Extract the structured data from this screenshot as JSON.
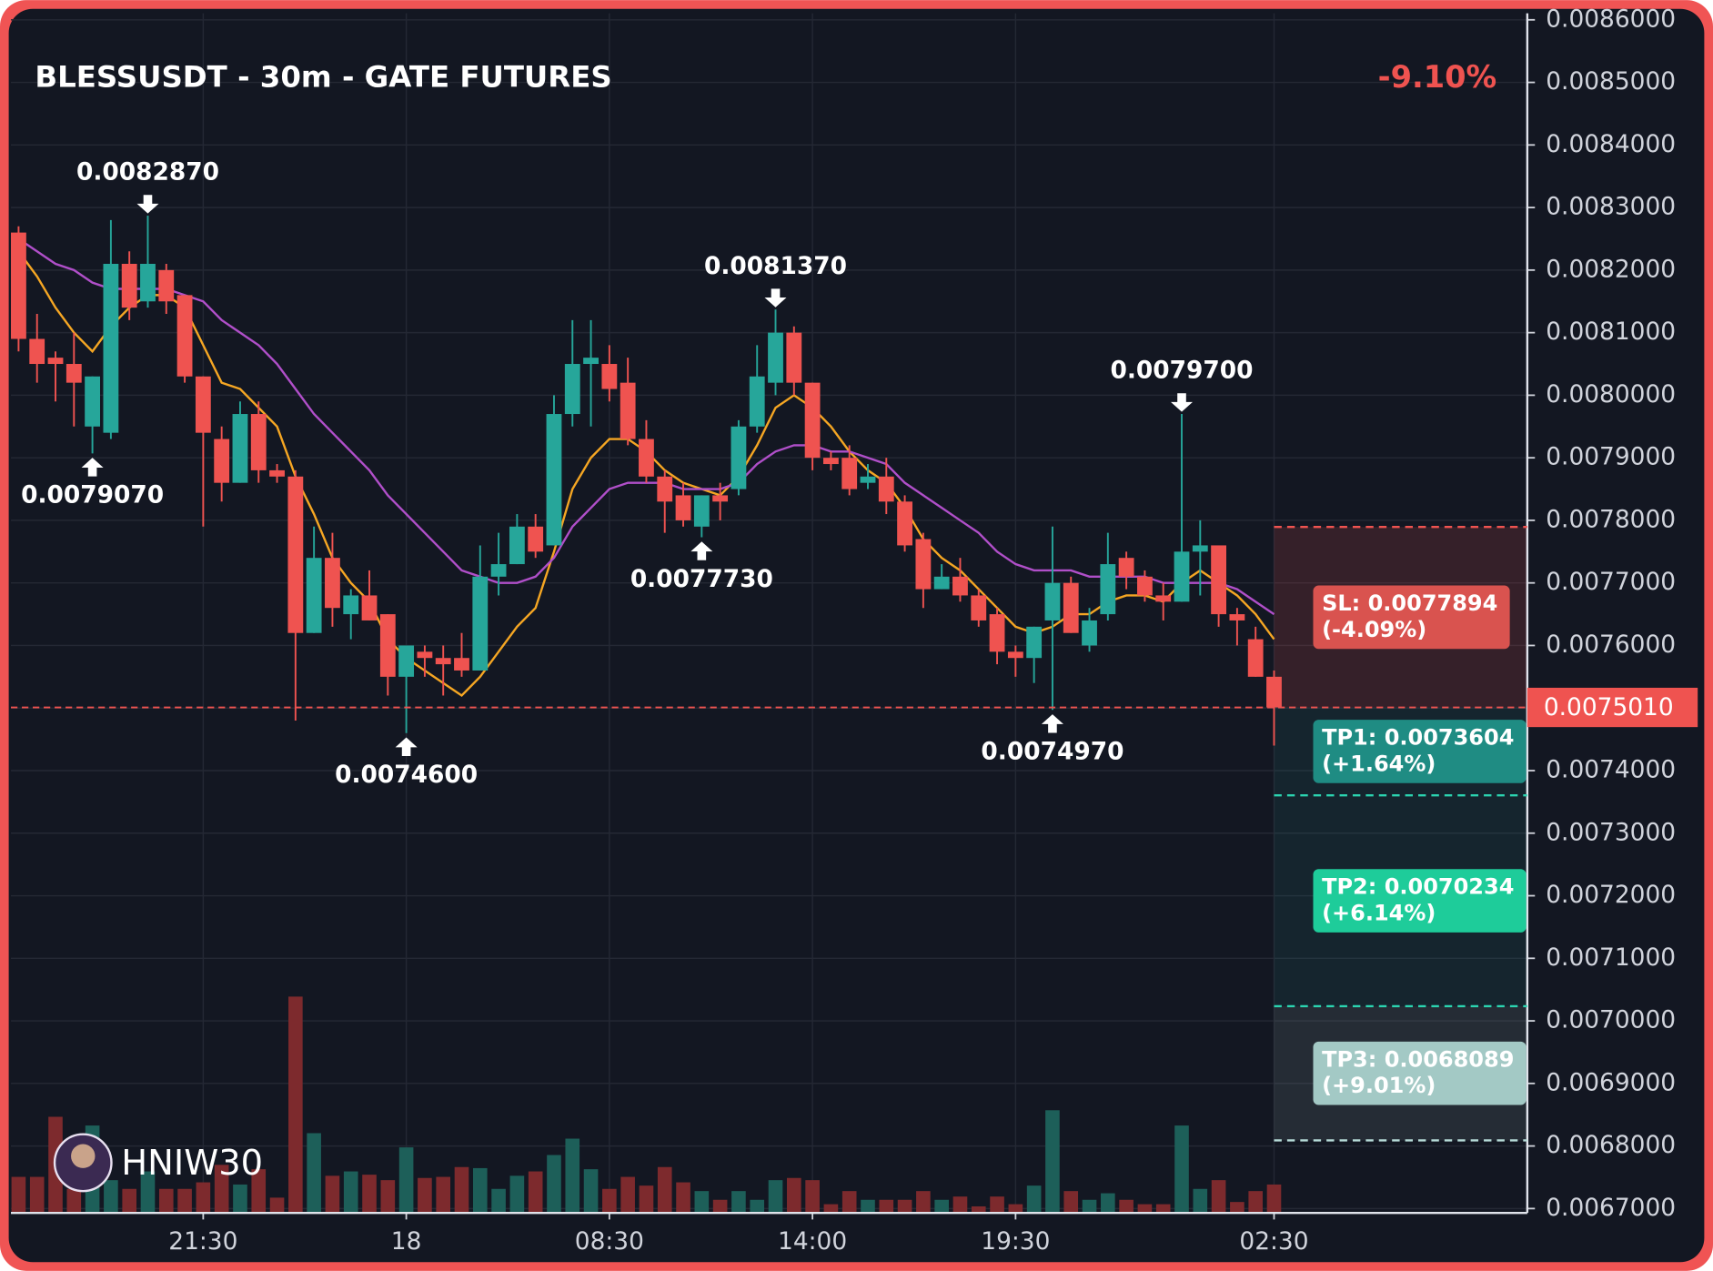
{
  "chart_data": {
    "type": "candlestick",
    "title": "BLESSUSDT - 30m - GATE FUTURES",
    "change": "-9.10%",
    "watermark": "HNIW30",
    "up_color": "#26a69a",
    "down_color": "#ef5350",
    "ylim": [
      0.0067,
      0.0086
    ],
    "yticks": [
      {
        "value": 0.0067,
        "label": "0.0067000"
      },
      {
        "value": 0.0068,
        "label": "0.0068000"
      },
      {
        "value": 0.0069,
        "label": "0.0069000"
      },
      {
        "value": 0.007,
        "label": "0.0070000"
      },
      {
        "value": 0.0071,
        "label": "0.0071000"
      },
      {
        "value": 0.0072,
        "label": "0.0072000"
      },
      {
        "value": 0.0073,
        "label": "0.0073000"
      },
      {
        "value": 0.0074,
        "label": "0.0074000"
      },
      {
        "value": 0.0075,
        "label": "0.0075000"
      },
      {
        "value": 0.0076,
        "label": "0.0076000"
      },
      {
        "value": 0.0077,
        "label": "0.0077000"
      },
      {
        "value": 0.0078,
        "label": "0.0078000"
      },
      {
        "value": 0.0079,
        "label": "0.0079000"
      },
      {
        "value": 0.008,
        "label": "0.0080000"
      },
      {
        "value": 0.0081,
        "label": "0.0081000"
      },
      {
        "value": 0.0082,
        "label": "0.0082000"
      },
      {
        "value": 0.0083,
        "label": "0.0083000"
      },
      {
        "value": 0.0084,
        "label": "0.0084000"
      },
      {
        "value": 0.0085,
        "label": "0.0085000"
      },
      {
        "value": 0.0086,
        "label": "0.0086000"
      }
    ],
    "xticks": [
      {
        "value": 10,
        "label": "21:30"
      },
      {
        "value": 21,
        "label": "18"
      },
      {
        "value": 32,
        "label": "08:30"
      },
      {
        "value": 43,
        "label": "14:00"
      },
      {
        "value": 54,
        "label": "19:30"
      },
      {
        "value": 68,
        "label": "02:30"
      }
    ],
    "grid": true,
    "open": [
      0.00826,
      0.00809,
      0.00806,
      0.00805,
      0.00795,
      0.00794,
      0.00821,
      0.00815,
      0.0082,
      0.00816,
      0.00803,
      0.00793,
      0.00786,
      0.00797,
      0.00788,
      0.00787,
      0.00762,
      0.00774,
      0.00765,
      0.00768,
      0.00765,
      0.00755,
      0.00759,
      0.00758,
      0.00758,
      0.00756,
      0.00771,
      0.00773,
      0.00779,
      0.00776,
      0.00797,
      0.00805,
      0.00805,
      0.00802,
      0.00793,
      0.00787,
      0.00784,
      0.00779,
      0.00784,
      0.00785,
      0.00795,
      0.00802,
      0.0081,
      0.00802,
      0.0079,
      0.0079,
      0.00786,
      0.00787,
      0.00783,
      0.00777,
      0.00769,
      0.00771,
      0.00768,
      0.00765,
      0.00759,
      0.00758,
      0.00764,
      0.0077,
      0.0076,
      0.00765,
      0.00774,
      0.00771,
      0.00768,
      0.00767,
      0.00775,
      0.00776,
      0.00765,
      0.00761,
      0.00755
    ],
    "high": [
      0.00827,
      0.00813,
      0.00807,
      0.0081,
      0.00803,
      0.00828,
      0.00823,
      0.008287,
      0.00821,
      0.00816,
      0.00803,
      0.00795,
      0.00799,
      0.00799,
      0.00789,
      0.00788,
      0.00779,
      0.00778,
      0.00769,
      0.00772,
      0.00765,
      0.0076,
      0.0076,
      0.0076,
      0.00762,
      0.00776,
      0.00778,
      0.00781,
      0.00781,
      0.008,
      0.00812,
      0.00812,
      0.00808,
      0.00806,
      0.00796,
      0.00788,
      0.00786,
      0.00784,
      0.00786,
      0.00796,
      0.00808,
      0.008137,
      0.00811,
      0.00802,
      0.00791,
      0.00792,
      0.00789,
      0.0079,
      0.00784,
      0.00778,
      0.00773,
      0.00774,
      0.00769,
      0.00766,
      0.0076,
      0.00763,
      0.00779,
      0.00771,
      0.00766,
      0.00778,
      0.00775,
      0.00772,
      0.0077,
      0.00797,
      0.0078,
      0.00776,
      0.00766,
      0.00763,
      0.00756
    ],
    "low": [
      0.00807,
      0.00802,
      0.00799,
      0.00795,
      0.007907,
      0.00793,
      0.00812,
      0.00814,
      0.00813,
      0.00802,
      0.00779,
      0.00783,
      0.00786,
      0.00786,
      0.00786,
      0.00748,
      0.00762,
      0.00763,
      0.00761,
      0.00764,
      0.00752,
      0.00746,
      0.00755,
      0.00752,
      0.00755,
      0.00756,
      0.00768,
      0.00773,
      0.00774,
      0.00776,
      0.00795,
      0.00795,
      0.00799,
      0.00792,
      0.00786,
      0.00778,
      0.00779,
      0.007773,
      0.0078,
      0.00784,
      0.00794,
      0.008,
      0.008,
      0.00788,
      0.00788,
      0.00784,
      0.00785,
      0.00781,
      0.00775,
      0.00766,
      0.00769,
      0.00767,
      0.00763,
      0.00757,
      0.00755,
      0.00754,
      0.007497,
      0.00762,
      0.00759,
      0.00764,
      0.00769,
      0.00767,
      0.00764,
      0.00767,
      0.00768,
      0.00763,
      0.0076,
      0.00755,
      0.00744
    ],
    "close": [
      0.00809,
      0.00805,
      0.00805,
      0.00802,
      0.00803,
      0.00821,
      0.00814,
      0.00821,
      0.00815,
      0.00803,
      0.00794,
      0.00786,
      0.00797,
      0.00788,
      0.00787,
      0.00762,
      0.00774,
      0.00766,
      0.00768,
      0.00764,
      0.00755,
      0.0076,
      0.00758,
      0.00757,
      0.00756,
      0.00771,
      0.00773,
      0.00779,
      0.00775,
      0.00797,
      0.00805,
      0.00806,
      0.00801,
      0.00793,
      0.00787,
      0.00783,
      0.0078,
      0.00784,
      0.00783,
      0.00795,
      0.00803,
      0.0081,
      0.00802,
      0.0079,
      0.00789,
      0.00785,
      0.00787,
      0.00783,
      0.00776,
      0.00769,
      0.00771,
      0.00768,
      0.00764,
      0.00759,
      0.00758,
      0.00763,
      0.0077,
      0.00762,
      0.00764,
      0.00773,
      0.00771,
      0.00768,
      0.00767,
      0.00775,
      0.00776,
      0.00765,
      0.00764,
      0.00755,
      0.007501
    ],
    "volume": [
      33,
      33,
      88,
      22,
      80,
      30,
      22,
      38,
      22,
      22,
      28,
      44,
      26,
      40,
      14,
      198,
      73,
      34,
      38,
      35,
      30,
      60,
      32,
      33,
      42,
      41,
      22,
      34,
      38,
      53,
      68,
      40,
      22,
      33,
      25,
      42,
      28,
      20,
      12,
      20,
      12,
      30,
      32,
      30,
      8,
      20,
      12,
      12,
      12,
      20,
      12,
      15,
      6,
      15,
      8,
      25,
      94,
      20,
      12,
      18,
      12,
      8,
      8,
      80,
      22,
      30,
      10,
      20,
      26
    ],
    "ma": [
      {
        "color": "#f5a623",
        "values": [
          0.00823,
          0.00819,
          0.00814,
          0.0081,
          0.00807,
          0.00811,
          0.00814,
          0.00816,
          0.00816,
          0.00814,
          0.00808,
          0.00802,
          0.00801,
          0.00798,
          0.00795,
          0.00787,
          0.00781,
          0.00774,
          0.0077,
          0.00767,
          0.00761,
          0.00758,
          0.00756,
          0.00754,
          0.00752,
          0.00755,
          0.00759,
          0.00763,
          0.00766,
          0.00775,
          0.00785,
          0.0079,
          0.00793,
          0.00793,
          0.00791,
          0.00788,
          0.00786,
          0.00785,
          0.00784,
          0.00787,
          0.00792,
          0.00798,
          0.008,
          0.00798,
          0.00795,
          0.00791,
          0.00788,
          0.00786,
          0.00782,
          0.00777,
          0.00774,
          0.00772,
          0.00769,
          0.00766,
          0.00763,
          0.00762,
          0.00763,
          0.00765,
          0.00765,
          0.00767,
          0.00768,
          0.00768,
          0.00767,
          0.0077,
          0.00772,
          0.0077,
          0.00768,
          0.00765,
          0.00761
        ]
      },
      {
        "color": "#b04fc9",
        "values": [
          0.00825,
          0.00823,
          0.00821,
          0.0082,
          0.00818,
          0.00817,
          0.00817,
          0.00817,
          0.00817,
          0.00816,
          0.00815,
          0.00812,
          0.0081,
          0.00808,
          0.00805,
          0.00801,
          0.00797,
          0.00794,
          0.00791,
          0.00788,
          0.00784,
          0.00781,
          0.00778,
          0.00775,
          0.00772,
          0.00771,
          0.0077,
          0.0077,
          0.00771,
          0.00774,
          0.00779,
          0.00782,
          0.00785,
          0.00786,
          0.00786,
          0.00786,
          0.00785,
          0.00785,
          0.00785,
          0.00786,
          0.00789,
          0.00791,
          0.00792,
          0.00792,
          0.00791,
          0.00791,
          0.0079,
          0.00789,
          0.00786,
          0.00784,
          0.00782,
          0.0078,
          0.00778,
          0.00775,
          0.00773,
          0.00772,
          0.00772,
          0.00772,
          0.00771,
          0.00771,
          0.00771,
          0.00771,
          0.0077,
          0.0077,
          0.0077,
          0.0077,
          0.00769,
          0.00767,
          0.00765
        ]
      }
    ],
    "annotations": [
      {
        "index": 7,
        "side": "high",
        "value": 0.008287,
        "label": "0.0082870"
      },
      {
        "index": 4,
        "side": "low",
        "value": 0.007907,
        "label": "0.0079070"
      },
      {
        "index": 21,
        "side": "low",
        "value": 0.00746,
        "label": "0.0074600"
      },
      {
        "index": 41,
        "side": "high",
        "value": 0.008137,
        "label": "0.0081370"
      },
      {
        "index": 37,
        "side": "low",
        "value": 0.007773,
        "label": "0.0077730"
      },
      {
        "index": 63,
        "side": "high",
        "value": 0.00797,
        "label": "0.0079700"
      },
      {
        "index": 56,
        "side": "low",
        "value": 0.007497,
        "label": "0.0074970"
      }
    ],
    "last_price": {
      "value": 0.007501,
      "label": "0.0075010"
    },
    "entry_index": 68,
    "levels": [
      {
        "value": 0.0077894,
        "label": "SL: 0.0077894",
        "pct_label": "(-4.09%)",
        "color": "#d9534f",
        "line": "#ef5350"
      },
      {
        "value": 0.0073604,
        "label": "TP1: 0.0073604",
        "pct_label": "(+1.64%)",
        "color": "#1f8c83",
        "line": "#2bd4b0"
      },
      {
        "value": 0.0070234,
        "label": "TP2: 0.0070234",
        "pct_label": "(+6.14%)",
        "color": "#1ecc9a",
        "line": "#2bd4b0"
      },
      {
        "value": 0.0068089,
        "label": "TP3: 0.0068089",
        "pct_label": "(+9.01%)",
        "color": "#a3c9c5",
        "line": "#b7dcd8"
      }
    ]
  }
}
